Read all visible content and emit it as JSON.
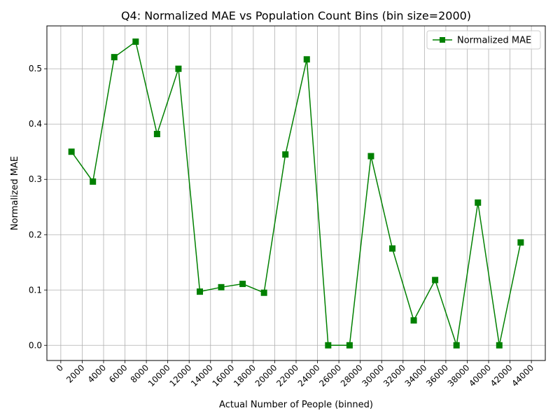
{
  "chart_data": {
    "type": "line",
    "title": "Q4: Normalized MAE vs Population Count Bins (bin size=2000)",
    "xlabel": "Actual Number of People (binned)",
    "ylabel": "Normalized MAE",
    "xlim": [
      -1300,
      45300
    ],
    "ylim": [
      -0.0275,
      0.5775
    ],
    "x_ticks": [
      0,
      2000,
      4000,
      6000,
      8000,
      10000,
      12000,
      14000,
      16000,
      18000,
      20000,
      22000,
      24000,
      26000,
      28000,
      30000,
      32000,
      34000,
      36000,
      38000,
      40000,
      42000,
      44000
    ],
    "y_ticks": [
      0.0,
      0.1,
      0.2,
      0.3,
      0.4,
      0.5
    ],
    "grid": true,
    "legend_position": "upper-right",
    "series": [
      {
        "name": "Normalized MAE",
        "color": "#008000",
        "marker": "square",
        "x": [
          1000,
          3000,
          5000,
          7000,
          9000,
          11000,
          13000,
          15000,
          17000,
          19000,
          21000,
          23000,
          25000,
          27000,
          29000,
          31000,
          33000,
          35000,
          37000,
          39000,
          41000,
          43000
        ],
        "y": [
          0.35,
          0.296,
          0.521,
          0.549,
          0.382,
          0.5,
          0.097,
          0.105,
          0.111,
          0.095,
          0.345,
          0.517,
          0.0,
          0.0,
          0.342,
          0.175,
          0.045,
          0.118,
          0.0,
          0.258,
          0.0,
          0.186
        ]
      }
    ]
  }
}
